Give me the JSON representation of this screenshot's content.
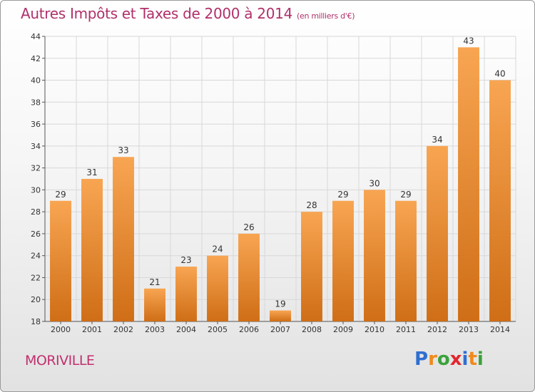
{
  "title": "Autres Impôts et Taxes de 2000 à 2014",
  "unit": "(en milliers d'€)",
  "commune": "MORIVILLE",
  "logo": {
    "text": "Proxiti",
    "letters": [
      {
        "ch": "P",
        "color": "#2f6fd0"
      },
      {
        "ch": "r",
        "color": "#f08a1c"
      },
      {
        "ch": "o",
        "color": "#3aa23a"
      },
      {
        "ch": "x",
        "color": "#e3262e"
      },
      {
        "ch": "i",
        "color": "#2f6fd0"
      },
      {
        "ch": "t",
        "color": "#f08a1c"
      },
      {
        "ch": "i",
        "color": "#3aa23a"
      }
    ]
  },
  "colors": {
    "title": "#b0306a",
    "bar_top": "#f8a552",
    "bar_bottom": "#cf6e16",
    "grid": "#d8d8d8"
  },
  "chart_data": {
    "type": "bar",
    "title": "Autres Impôts et Taxes de 2000 à 2014",
    "subtitle": "(en milliers d'€)",
    "xlabel": "",
    "ylabel": "",
    "categories": [
      "2000",
      "2001",
      "2002",
      "2003",
      "2004",
      "2005",
      "2006",
      "2007",
      "2008",
      "2009",
      "2010",
      "2011",
      "2012",
      "2013",
      "2014"
    ],
    "values": [
      29,
      31,
      33,
      21,
      23,
      24,
      26,
      19,
      28,
      29,
      30,
      29,
      34,
      43,
      40
    ],
    "ylim": [
      18,
      44
    ],
    "yticks": [
      18,
      20,
      22,
      24,
      26,
      28,
      30,
      32,
      34,
      36,
      38,
      40,
      42,
      44
    ],
    "grid": true,
    "data_labels": true
  }
}
